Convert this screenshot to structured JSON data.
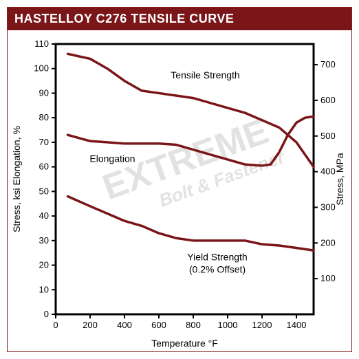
{
  "title": "HASTELLOY C276 TENSILE CURVE",
  "chart": {
    "type": "line",
    "background_color": "#ffffff",
    "border_color": "#7a1518",
    "plot_border_width": 3,
    "series_color": "#7a1518",
    "series_width": 3.5,
    "x": {
      "label": "Temperature  °F",
      "min": 0,
      "max": 1500,
      "ticks": [
        0,
        200,
        400,
        600,
        800,
        1000,
        1200,
        1400
      ],
      "tick_fontsize": 13,
      "label_fontsize": 14
    },
    "y_left": {
      "label": "Stress, ksi  Elongation, %",
      "min": 0,
      "max": 110,
      "ticks": [
        0,
        10,
        20,
        30,
        40,
        50,
        60,
        70,
        80,
        90,
        100,
        110
      ],
      "tick_fontsize": 13,
      "label_fontsize": 14
    },
    "y_right": {
      "label": "Stress, MPa",
      "min": 0,
      "max": 758,
      "ticks": [
        100,
        200,
        300,
        400,
        500,
        600,
        700
      ],
      "tick_fontsize": 13,
      "label_fontsize": 14
    },
    "series": {
      "tensile": {
        "label": "Tensile Strength",
        "points": [
          [
            70,
            106
          ],
          [
            200,
            104
          ],
          [
            300,
            100
          ],
          [
            400,
            95
          ],
          [
            500,
            91
          ],
          [
            600,
            90
          ],
          [
            700,
            89
          ],
          [
            800,
            88
          ],
          [
            900,
            86
          ],
          [
            1000,
            84
          ],
          [
            1100,
            82
          ],
          [
            1200,
            79
          ],
          [
            1300,
            76
          ],
          [
            1400,
            70
          ],
          [
            1500,
            60
          ]
        ]
      },
      "elongation": {
        "label": "Elongation",
        "points": [
          [
            70,
            73
          ],
          [
            200,
            70.5
          ],
          [
            300,
            70
          ],
          [
            400,
            69.5
          ],
          [
            500,
            69.5
          ],
          [
            600,
            69.5
          ],
          [
            700,
            69
          ],
          [
            800,
            67
          ],
          [
            900,
            65
          ],
          [
            1000,
            63
          ],
          [
            1100,
            61
          ],
          [
            1200,
            60.5
          ],
          [
            1250,
            61
          ],
          [
            1300,
            66
          ],
          [
            1350,
            73
          ],
          [
            1400,
            78
          ],
          [
            1450,
            80
          ],
          [
            1500,
            80.5
          ]
        ]
      },
      "yield": {
        "label_line1": "Yield Strength",
        "label_line2": "(0.2% Offset)",
        "points": [
          [
            70,
            48
          ],
          [
            200,
            44
          ],
          [
            300,
            41
          ],
          [
            400,
            38
          ],
          [
            500,
            36
          ],
          [
            600,
            33
          ],
          [
            700,
            31
          ],
          [
            800,
            30
          ],
          [
            900,
            30
          ],
          [
            1000,
            30
          ],
          [
            1100,
            30
          ],
          [
            1200,
            28.5
          ],
          [
            1300,
            28
          ],
          [
            1400,
            27
          ],
          [
            1500,
            26
          ]
        ]
      }
    },
    "watermark": {
      "line1": "EXTREME",
      "line2": "Bolt & Fastener",
      "color": "#dcdcdc",
      "angle_deg": -20,
      "fontsize1": 52,
      "fontsize2": 26
    }
  }
}
